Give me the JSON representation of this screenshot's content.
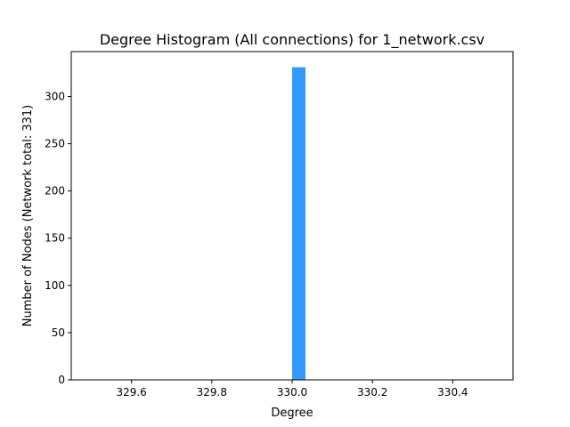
{
  "chart_data": {
    "type": "bar",
    "title": "Degree Histogram (All connections) for 1_network.csv",
    "xlabel": "Degree",
    "ylabel": "Number of Nodes (Network total: 331)",
    "bars": [
      {
        "x_start": 330.0,
        "x_end": 330.0333,
        "value": 331
      }
    ],
    "xlim": [
      329.45,
      330.55
    ],
    "ylim": [
      0,
      347.55
    ],
    "xticks": [
      329.6,
      329.8,
      330.0,
      330.2,
      330.4
    ],
    "xtick_labels": [
      "329.6",
      "329.8",
      "330.0",
      "330.2",
      "330.4"
    ],
    "yticks": [
      0,
      50,
      100,
      150,
      200,
      250,
      300
    ],
    "ytick_labels": [
      "0",
      "50",
      "100",
      "150",
      "200",
      "250",
      "300"
    ],
    "bar_color": "#3399ff",
    "grid": false,
    "legend": "none"
  }
}
